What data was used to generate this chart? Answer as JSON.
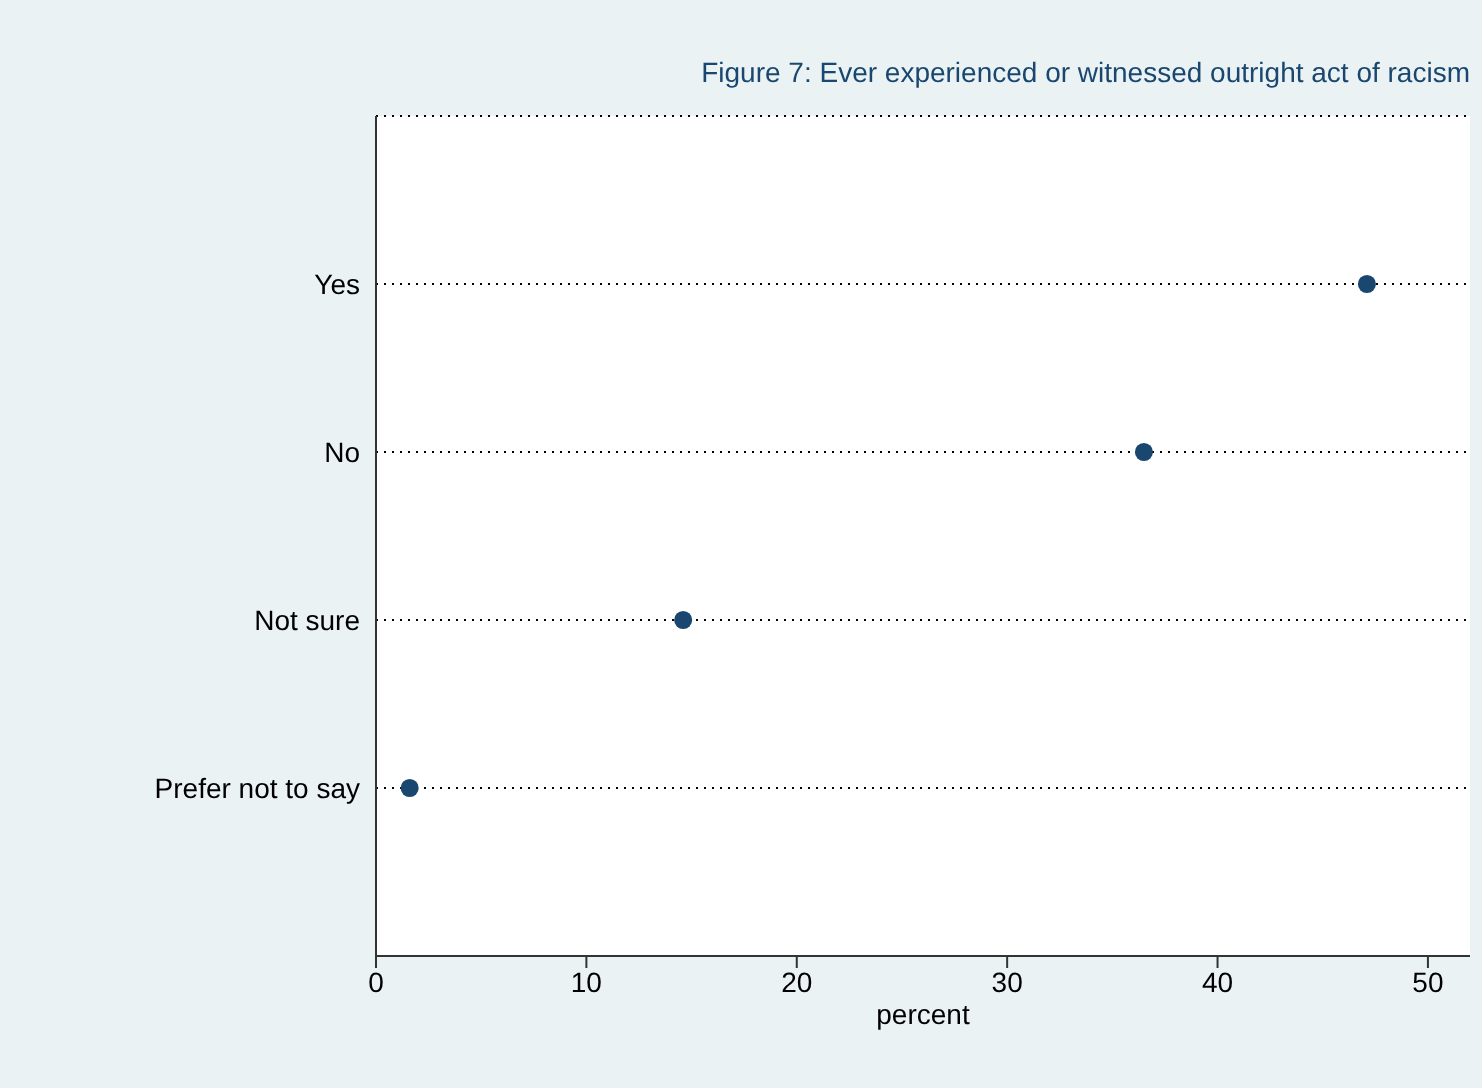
{
  "chart_data": {
    "type": "scatter",
    "title": "Figure 7: Ever experienced or witnessed outright act of racism",
    "xlabel": "percent",
    "categories": [
      "Yes",
      "No",
      "Not sure",
      "Prefer not to say"
    ],
    "series": [
      {
        "color": "#1a476f",
        "values": [
          47.1,
          36.5,
          14.6,
          1.6
        ]
      }
    ],
    "orientation": "horizontal",
    "xlim": [
      0,
      52
    ],
    "xticks": [
      0,
      10,
      20,
      30,
      40,
      50
    ],
    "grid": "y",
    "marker": "circle"
  }
}
